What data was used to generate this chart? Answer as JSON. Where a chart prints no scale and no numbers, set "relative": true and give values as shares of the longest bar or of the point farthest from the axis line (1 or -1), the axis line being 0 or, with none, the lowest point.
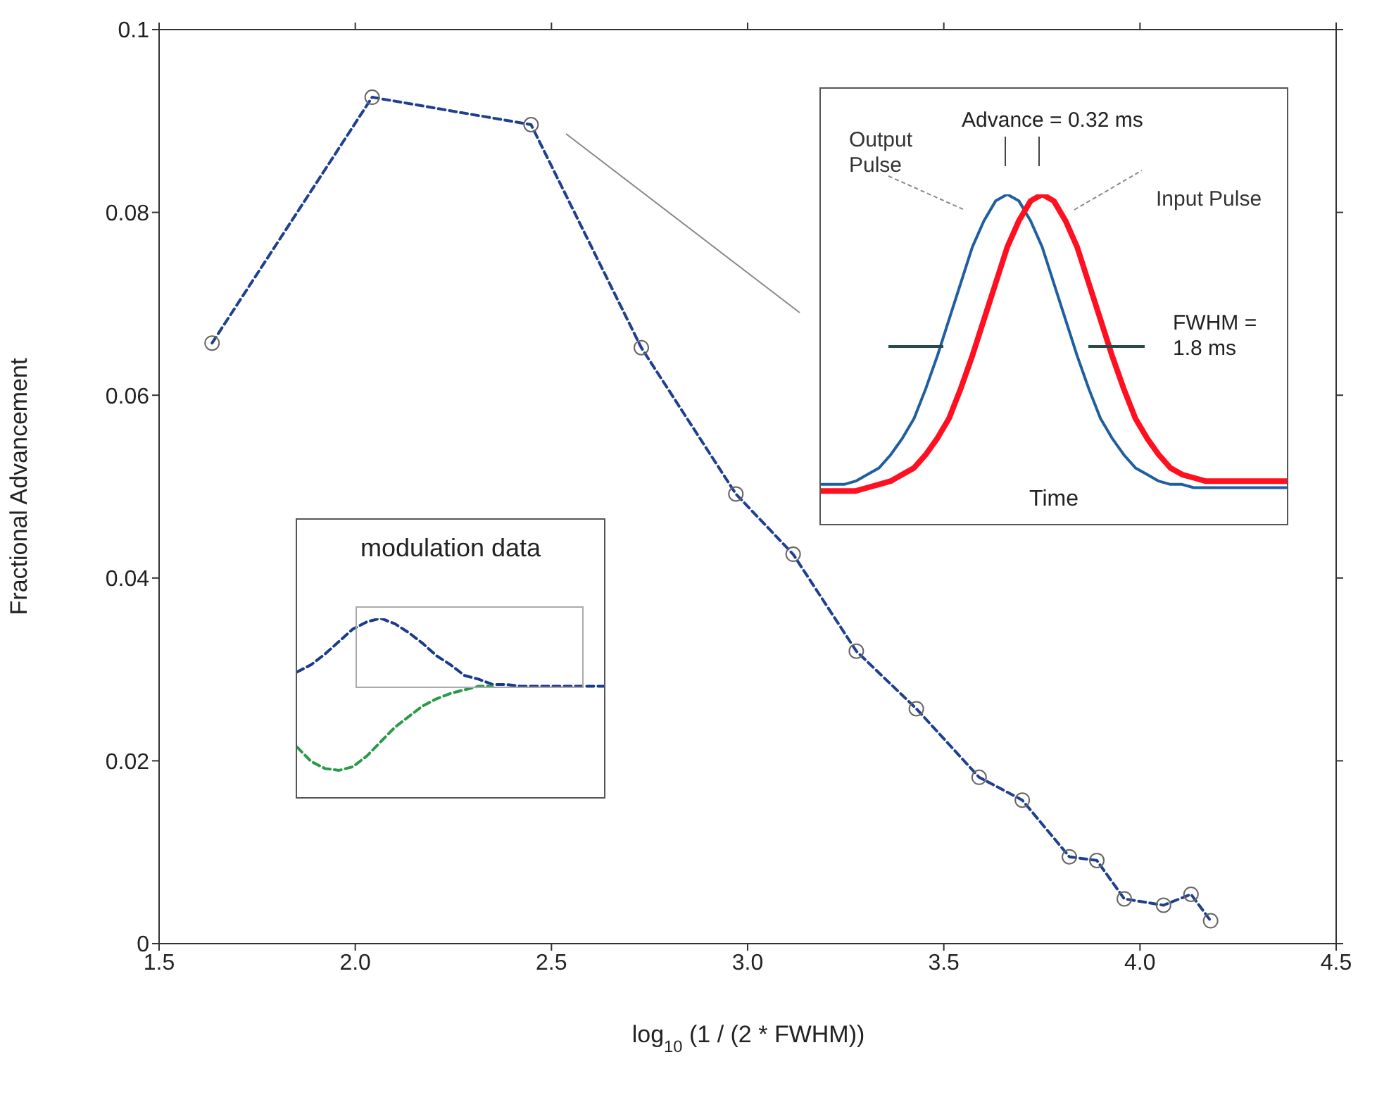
{
  "chart_data": [
    {
      "type": "line",
      "xlabel": "log$_{10}$ (1 / (2 * FWHM))",
      "ylabel": "Fractional Advancement",
      "x": [
        1.635,
        2.043,
        2.448,
        2.729,
        2.97,
        3.116,
        3.277,
        3.43,
        3.59,
        3.7,
        3.82,
        3.89,
        3.96,
        4.06,
        4.13,
        4.18
      ],
      "series": [
        {
          "color": "#1f3f8f",
          "values": [
            0.0657,
            0.0926,
            0.0896,
            0.0652,
            0.0492,
            0.0426,
            0.032,
            0.0257,
            0.0182,
            0.0157,
            0.0095,
            0.0091,
            0.0049,
            0.0042,
            0.0054,
            0.0025
          ]
        }
      ],
      "xlim": [
        1.5,
        4.5
      ],
      "xticks": [
        1.5,
        {
          "value": 2,
          "label": "2.0"
        },
        2.5,
        {
          "value": 3,
          "label": "3.0"
        },
        3.5,
        {
          "value": 4,
          "label": "4.0"
        },
        4.5
      ],
      "ylim": [
        0,
        0.1
      ],
      "yticks": [
        0,
        0.02,
        0.04,
        0.06,
        0.08,
        0.1
      ],
      "marker": "circle",
      "line_style": "dashed",
      "legend": false
    },
    {
      "type": "line",
      "title": "modulation data",
      "relative": true,
      "categories": [
        null,
        null,
        null,
        null,
        null,
        null,
        null,
        null,
        null,
        null,
        null,
        null,
        null,
        null,
        null,
        null,
        null,
        null,
        null,
        null,
        null,
        null,
        null
      ],
      "series": [
        {
          "color": "#1a3a8a",
          "values": [
            0.7,
            0.74,
            0.8,
            0.87,
            0.94,
            0.98,
            1,
            0.97,
            0.92,
            0.86,
            0.79,
            0.74,
            0.68,
            0.66,
            0.63,
            0.63,
            0.62,
            0.62,
            0.62,
            0.62,
            0.62,
            0.62,
            0.62
          ]
        },
        {
          "color": "#2a9a4a",
          "values": [
            0.28,
            0.2,
            0.16,
            0.15,
            0.17,
            0.23,
            0.31,
            0.39,
            0.45,
            0.51,
            0.55,
            0.58,
            0.6,
            0.62,
            0.62,
            null,
            null,
            null,
            null,
            null,
            null,
            null,
            null
          ]
        }
      ],
      "line_style": "dashed",
      "legend": false
    },
    {
      "type": "line",
      "xlabel": "Time",
      "relative": true,
      "categories": [
        null,
        null,
        null,
        null,
        null,
        null,
        null,
        null,
        null,
        null,
        null,
        null,
        null,
        null,
        null,
        null,
        null,
        null,
        null,
        null,
        null,
        null,
        null,
        null,
        null,
        null,
        null,
        null,
        null,
        null,
        null,
        null,
        null,
        null,
        null,
        null,
        null,
        null,
        null,
        null,
        null
      ],
      "series": [
        {
          "name": "Output Pulse",
          "color": "#1f5f9f",
          "values": [
            0.12,
            0.12,
            0.12,
            0.13,
            0.15,
            0.17,
            0.21,
            0.26,
            0.32,
            0.41,
            0.51,
            0.62,
            0.73,
            0.84,
            0.92,
            0.98,
            1,
            0.98,
            0.92,
            0.84,
            0.73,
            0.62,
            0.51,
            0.41,
            0.32,
            0.26,
            0.21,
            0.17,
            0.15,
            0.13,
            0.12,
            0.12,
            0.11,
            0.11,
            0.11,
            0.11,
            0.11,
            0.11,
            0.11,
            0.11,
            0.11
          ]
        },
        {
          "name": "Input Pulse",
          "color": "#ff1020",
          "values": [
            0.1,
            0.1,
            0.1,
            0.1,
            0.11,
            0.12,
            0.13,
            0.15,
            0.17,
            0.21,
            0.26,
            0.32,
            0.41,
            0.51,
            0.62,
            0.73,
            0.84,
            0.92,
            0.98,
            1,
            0.98,
            0.92,
            0.84,
            0.73,
            0.62,
            0.51,
            0.41,
            0.32,
            0.26,
            0.21,
            0.17,
            0.15,
            0.14,
            0.13,
            0.13,
            0.13,
            0.13,
            0.13,
            0.13,
            0.13,
            0.13
          ]
        }
      ],
      "annotations": [
        "Advance = 0.32 ms",
        "FWHM = 1.8 ms"
      ],
      "legend": false
    }
  ]
}
